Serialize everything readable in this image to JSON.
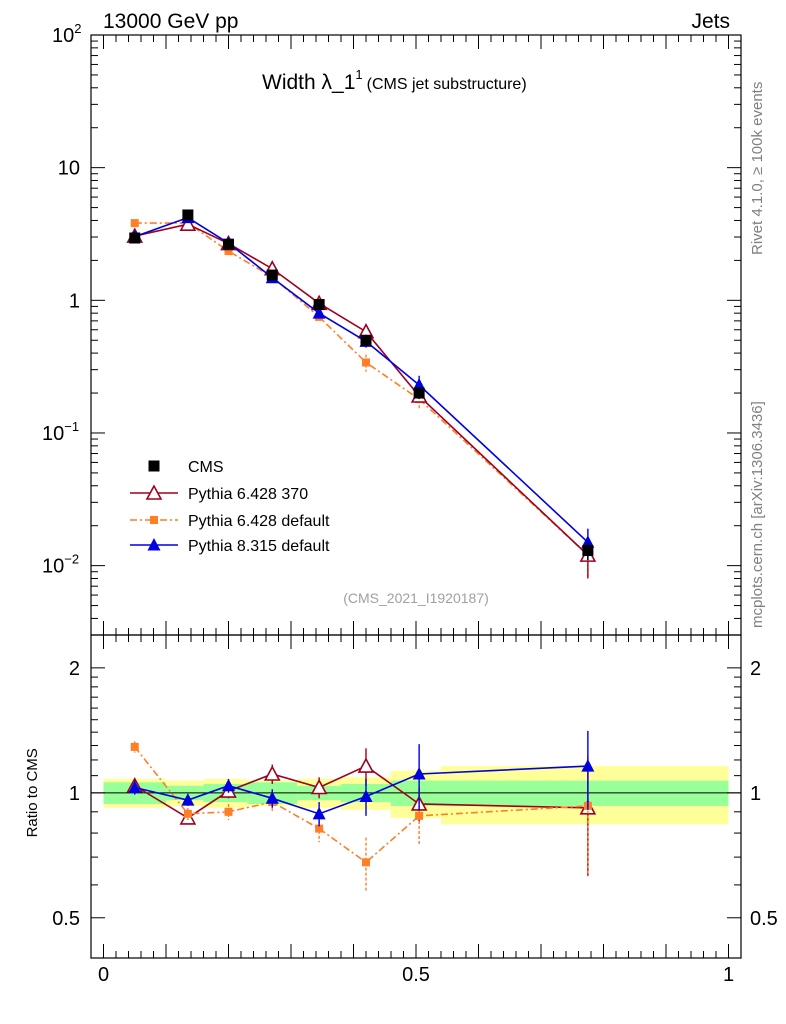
{
  "header": {
    "energy_label": "13000 GeV pp",
    "category_label": "Jets"
  },
  "side_labels": {
    "rivet": "Rivet 4.1.0, ≥ 100k events",
    "mcplots": "mcplots.cern.ch [arXiv:1306.3436]"
  },
  "watermark": "(CMS_2021_I1920187)",
  "colors": {
    "cms": "#000000",
    "py6_370": "#a0001e",
    "py6_default": "#ff7f27",
    "py8": "#0000e0",
    "band_inner": "#99ff99",
    "band_outer": "#ffff99"
  },
  "chart_data": [
    {
      "id": "main",
      "type": "line",
      "title_main": "Width λ_1",
      "title_sup": "1",
      "title_sub": "(CMS jet substructure)",
      "yscale": "log",
      "ylim": [
        0.003,
        100
      ],
      "xlim": [
        -0.02,
        1.02
      ],
      "y_ticks": [
        {
          "value": 0.01,
          "base": "10",
          "exp": "−2"
        },
        {
          "value": 0.1,
          "base": "10",
          "exp": "−1"
        },
        {
          "value": 1,
          "base": "1",
          "exp": ""
        },
        {
          "value": 10,
          "base": "10",
          "exp": ""
        },
        {
          "value": 100,
          "base": "10",
          "exp": "2"
        }
      ],
      "x": [
        0.05,
        0.135,
        0.2,
        0.27,
        0.345,
        0.42,
        0.505,
        0.775
      ],
      "series": [
        {
          "name": "CMS",
          "marker": "square",
          "line": "none",
          "values": [
            2.95,
            4.4,
            2.65,
            1.55,
            0.93,
            0.5,
            0.2,
            0.013
          ],
          "err": [
            0.15,
            0.25,
            0.12,
            0.09,
            0.06,
            0.05,
            0.02,
            0.002
          ]
        },
        {
          "name": "Pythia 6.428 370",
          "marker": "triangle-open",
          "line": "solid",
          "values": [
            3.05,
            3.75,
            2.68,
            1.73,
            0.95,
            0.58,
            0.19,
            0.012
          ],
          "err": [
            0.1,
            0.15,
            0.1,
            0.08,
            0.05,
            0.05,
            0.02,
            0.004
          ]
        },
        {
          "name": "Pythia 6.428 default",
          "marker": "square-small",
          "line": "dashdot",
          "values": [
            3.82,
            3.82,
            2.35,
            1.5,
            0.75,
            0.34,
            0.18,
            0.012
          ],
          "err": [
            0.12,
            0.12,
            0.1,
            0.08,
            0.06,
            0.05,
            0.03,
            0.004
          ]
        },
        {
          "name": "Pythia 8.315 default",
          "marker": "triangle",
          "line": "solid",
          "values": [
            3.02,
            4.2,
            2.7,
            1.48,
            0.8,
            0.49,
            0.23,
            0.015
          ],
          "err": [
            0.1,
            0.15,
            0.1,
            0.08,
            0.05,
            0.05,
            0.04,
            0.004
          ]
        }
      ]
    },
    {
      "id": "ratio",
      "type": "line",
      "ylabel": "Ratio to CMS",
      "yscale": "log",
      "ylim": [
        0.4,
        2.4
      ],
      "xlim": [
        -0.02,
        1.02
      ],
      "y_ticks": [
        0.5,
        1,
        2
      ],
      "y_tick_labels": [
        "0.5",
        "1",
        "2"
      ],
      "x_ticks": [
        0,
        0.5,
        1
      ],
      "x_tick_labels": [
        "0",
        "0.5",
        "1"
      ],
      "band_edges": [
        0,
        0.1,
        0.16,
        0.23,
        0.31,
        0.38,
        0.46,
        0.54,
        1.0
      ],
      "band_inner": [
        0.06,
        0.04,
        0.05,
        0.06,
        0.04,
        0.05,
        0.07,
        0.07
      ],
      "band_outer": [
        0.08,
        0.07,
        0.08,
        0.07,
        0.08,
        0.09,
        0.13,
        0.16
      ],
      "x": [
        0.05,
        0.135,
        0.2,
        0.27,
        0.345,
        0.42,
        0.505,
        0.775
      ],
      "series": [
        {
          "name": "Pythia 6.428 370",
          "values": [
            1.04,
            0.87,
            1.01,
            1.11,
            1.03,
            1.16,
            0.94,
            0.92
          ],
          "err": [
            0.04,
            0.03,
            0.04,
            0.06,
            0.06,
            0.12,
            0.09,
            0.29
          ]
        },
        {
          "name": "Pythia 6.428 default",
          "values": [
            1.29,
            0.89,
            0.9,
            0.95,
            0.82,
            0.68,
            0.88,
            0.93
          ],
          "err": [
            0.04,
            0.03,
            0.04,
            0.05,
            0.06,
            0.1,
            0.13,
            0.3
          ]
        },
        {
          "name": "Pythia 8.315 default",
          "values": [
            1.03,
            0.96,
            1.04,
            0.97,
            0.89,
            0.98,
            1.11,
            1.16
          ],
          "err": [
            0.04,
            0.03,
            0.04,
            0.05,
            0.06,
            0.1,
            0.2,
            0.25
          ]
        }
      ]
    }
  ]
}
